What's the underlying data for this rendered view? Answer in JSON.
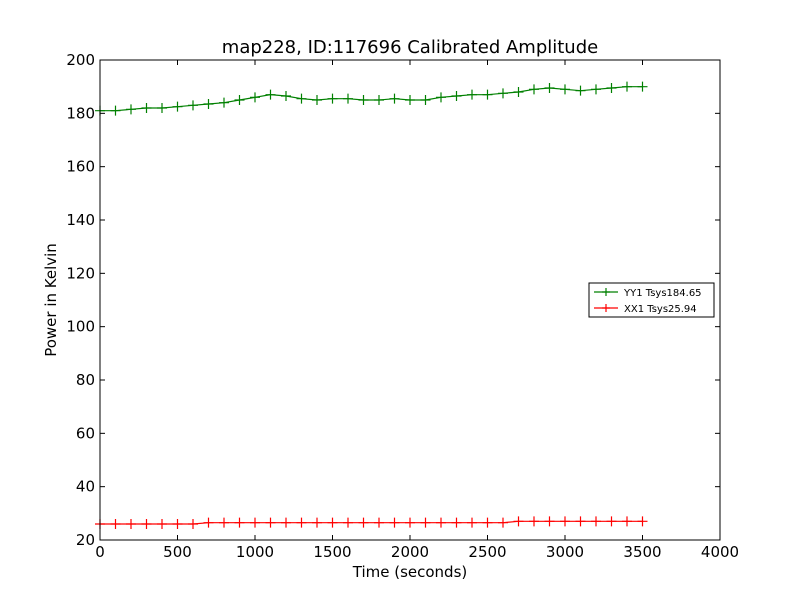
{
  "chart_data": {
    "type": "line",
    "title": "map228, ID:117696 Calibrated Amplitude",
    "xlabel": "Time (seconds)",
    "ylabel": "Power in Kelvin",
    "xlim": [
      0,
      4000
    ],
    "ylim": [
      20,
      200
    ],
    "xticks": [
      0,
      500,
      1000,
      1500,
      2000,
      2500,
      3000,
      3500,
      4000
    ],
    "yticks": [
      20,
      40,
      60,
      80,
      100,
      120,
      140,
      160,
      180,
      200
    ],
    "xtick_labels": [
      "0",
      "500",
      "1000",
      "1500",
      "2000",
      "2500",
      "3000",
      "3500",
      "4000"
    ],
    "ytick_labels": [
      "20",
      "40",
      "60",
      "80",
      "100",
      "120",
      "140",
      "160",
      "180",
      "200"
    ],
    "grid": false,
    "legend_position": "center-right",
    "marker": "plus",
    "series": [
      {
        "name": "YY1 Tsys184.65",
        "color": "#008000",
        "x": [
          0,
          100,
          200,
          300,
          400,
          500,
          600,
          700,
          800,
          900,
          1000,
          1100,
          1200,
          1300,
          1400,
          1500,
          1600,
          1700,
          1800,
          1900,
          2000,
          2100,
          2200,
          2300,
          2400,
          2500,
          2600,
          2700,
          2800,
          2900,
          3000,
          3100,
          3200,
          3300,
          3400,
          3500
        ],
        "y": [
          181,
          181,
          181.5,
          182,
          182,
          182.5,
          183,
          183.5,
          184,
          185,
          186,
          187,
          186.5,
          185.5,
          185,
          185.5,
          185.5,
          185,
          185,
          185.5,
          185,
          185,
          186,
          186.5,
          187,
          187,
          187.5,
          188,
          189,
          189.5,
          189,
          188.5,
          189,
          189.5,
          190,
          190
        ]
      },
      {
        "name": "XX1 Tsys25.94",
        "color": "#ff0000",
        "x": [
          0,
          100,
          200,
          300,
          400,
          500,
          600,
          700,
          800,
          900,
          1000,
          1100,
          1200,
          1300,
          1400,
          1500,
          1600,
          1700,
          1800,
          1900,
          2000,
          2100,
          2200,
          2300,
          2400,
          2500,
          2600,
          2700,
          2800,
          2900,
          3000,
          3100,
          3200,
          3300,
          3400,
          3500
        ],
        "y": [
          26,
          26,
          26,
          26,
          26,
          26,
          26,
          26.5,
          26.5,
          26.5,
          26.5,
          26.5,
          26.5,
          26.5,
          26.5,
          26.5,
          26.5,
          26.5,
          26.5,
          26.5,
          26.5,
          26.5,
          26.5,
          26.5,
          26.5,
          26.5,
          26.5,
          27,
          27,
          27,
          27,
          27,
          27,
          27,
          27,
          27
        ]
      }
    ]
  }
}
